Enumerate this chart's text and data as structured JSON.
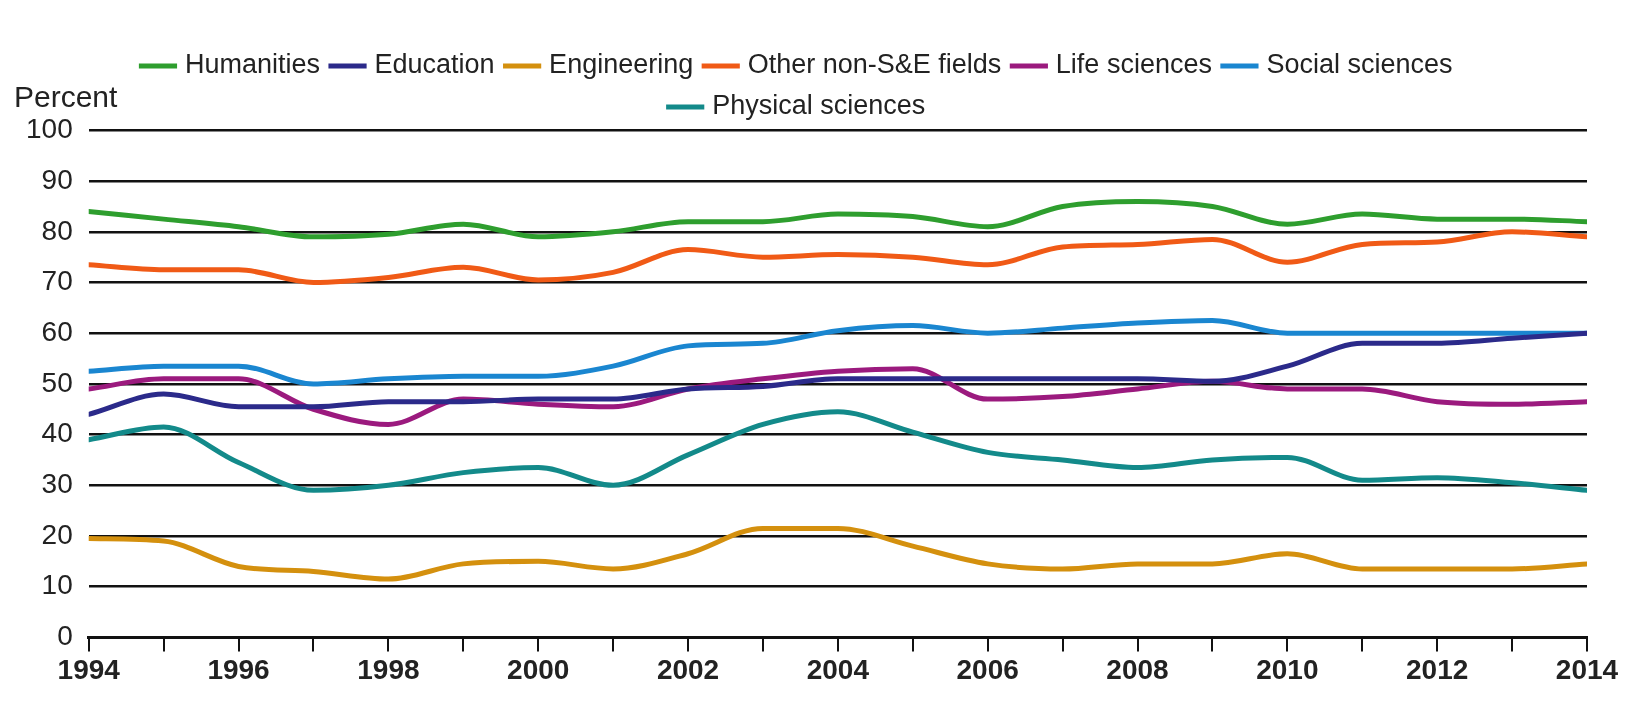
{
  "chart_data": {
    "type": "line",
    "ylabel": "Percent",
    "x": [
      1994,
      1995,
      1996,
      1997,
      1998,
      1999,
      2000,
      2001,
      2002,
      2003,
      2004,
      2005,
      2006,
      2007,
      2008,
      2009,
      2010,
      2011,
      2012,
      2013,
      2014
    ],
    "xlim": [
      1994,
      2014
    ],
    "xticks": [
      1994,
      {
        "value": 1995,
        "label": null
      },
      1996,
      {
        "value": 1997,
        "label": null
      },
      1998,
      {
        "value": 1999,
        "label": null
      },
      2000,
      {
        "value": 2001,
        "label": null
      },
      2002,
      {
        "value": 2003,
        "label": null
      },
      2004,
      {
        "value": 2005,
        "label": null
      },
      2006,
      {
        "value": 2007,
        "label": null
      },
      2008,
      {
        "value": 2009,
        "label": null
      },
      2010,
      {
        "value": 2011,
        "label": null
      },
      2012,
      {
        "value": 2013,
        "label": null
      },
      2014
    ],
    "ylim": [
      0,
      100
    ],
    "yticks": [
      0,
      10,
      20,
      30,
      40,
      50,
      60,
      70,
      80,
      90,
      100
    ],
    "grid": "y",
    "legend": "top",
    "marker": "none",
    "line_style": "solid",
    "series": [
      {
        "name": "Humanities",
        "color": "#2e9e2e",
        "values": [
          84,
          82.5,
          81,
          79,
          79.5,
          81.5,
          79,
          80,
          82,
          82,
          83.5,
          83,
          81,
          85,
          86,
          85,
          81.5,
          83.5,
          82.5,
          82.5,
          82
        ]
      },
      {
        "name": "Education",
        "color": "#2b2a8a",
        "values": [
          44,
          48,
          45.5,
          45.5,
          46.5,
          46.5,
          47,
          47,
          49,
          49.5,
          51,
          51,
          51,
          51,
          51,
          50.5,
          53.5,
          58,
          58,
          59,
          60
        ]
      },
      {
        "name": "Engineering",
        "color": "#d4900e",
        "values": [
          19.5,
          19,
          14,
          13,
          11.5,
          14.5,
          15,
          13.5,
          16.5,
          21.5,
          21.5,
          18,
          14.5,
          13.5,
          14.5,
          14.5,
          16.5,
          13.5,
          13.5,
          13.5,
          14.5
        ]
      },
      {
        "name": "Other non-S&E fields",
        "color": "#f05a16",
        "values": [
          73.5,
          72.5,
          72.5,
          70,
          71,
          73,
          70.5,
          72,
          76.5,
          75,
          75.5,
          75,
          73.5,
          77,
          77.5,
          78.5,
          74,
          77.5,
          78,
          80,
          79
        ]
      },
      {
        "name": "Life sciences",
        "color": "#9b1a7e",
        "values": [
          49,
          51,
          51,
          45,
          42,
          47,
          46,
          45.5,
          49,
          51,
          52.5,
          53,
          47,
          47.5,
          49,
          50.5,
          49,
          49,
          46.5,
          46,
          46.5
        ]
      },
      {
        "name": "Social sciences",
        "color": "#1a86d0",
        "values": [
          52.5,
          53.5,
          53.5,
          50,
          51,
          51.5,
          51.5,
          53.5,
          57.5,
          58,
          60.5,
          61.5,
          60,
          61,
          62,
          62.5,
          60,
          60,
          60,
          60,
          60
        ]
      },
      {
        "name": "Physical sciences",
        "color": "#138a8a",
        "values": [
          39,
          41.5,
          34.5,
          29,
          30,
          32.5,
          33.5,
          30,
          36,
          42,
          44.5,
          40.5,
          36.5,
          35,
          33.5,
          35,
          35.5,
          31,
          31.5,
          30.5,
          29
        ]
      }
    ]
  }
}
